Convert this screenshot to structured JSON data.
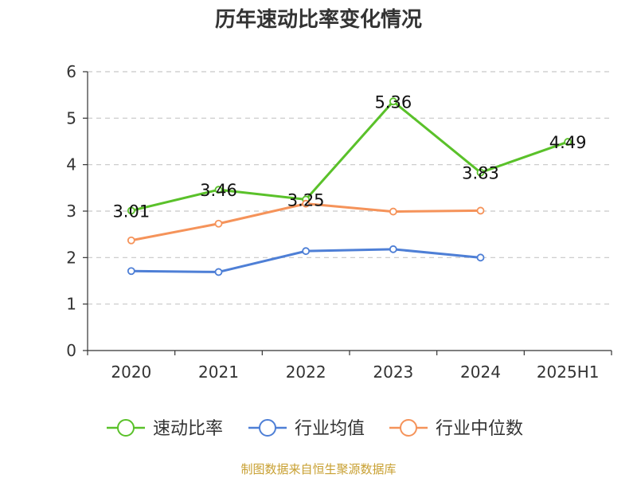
{
  "footer": {
    "source": "制图数据来自恒生聚源数据库"
  },
  "chart_data": {
    "type": "line",
    "title": "历年速动比率变化情况",
    "categories": [
      "2020",
      "2021",
      "2022",
      "2023",
      "2024",
      "2025H1"
    ],
    "ylim": [
      0,
      6
    ],
    "yticks": [
      0,
      1,
      2,
      3,
      4,
      5,
      6
    ],
    "grid": true,
    "legend_position": "bottom",
    "series": [
      {
        "name": "速动比率",
        "color": "#5ac12a",
        "values": [
          3.01,
          3.46,
          3.25,
          5.36,
          3.83,
          4.49
        ],
        "show_labels": true
      },
      {
        "name": "行业均值",
        "color": "#4e7fd6",
        "values": [
          1.71,
          1.69,
          2.14,
          2.18,
          2.0,
          null
        ],
        "show_labels": false
      },
      {
        "name": "行业中位数",
        "color": "#f5935a",
        "values": [
          2.37,
          2.73,
          3.16,
          2.99,
          3.01,
          null
        ],
        "show_labels": false
      }
    ]
  }
}
